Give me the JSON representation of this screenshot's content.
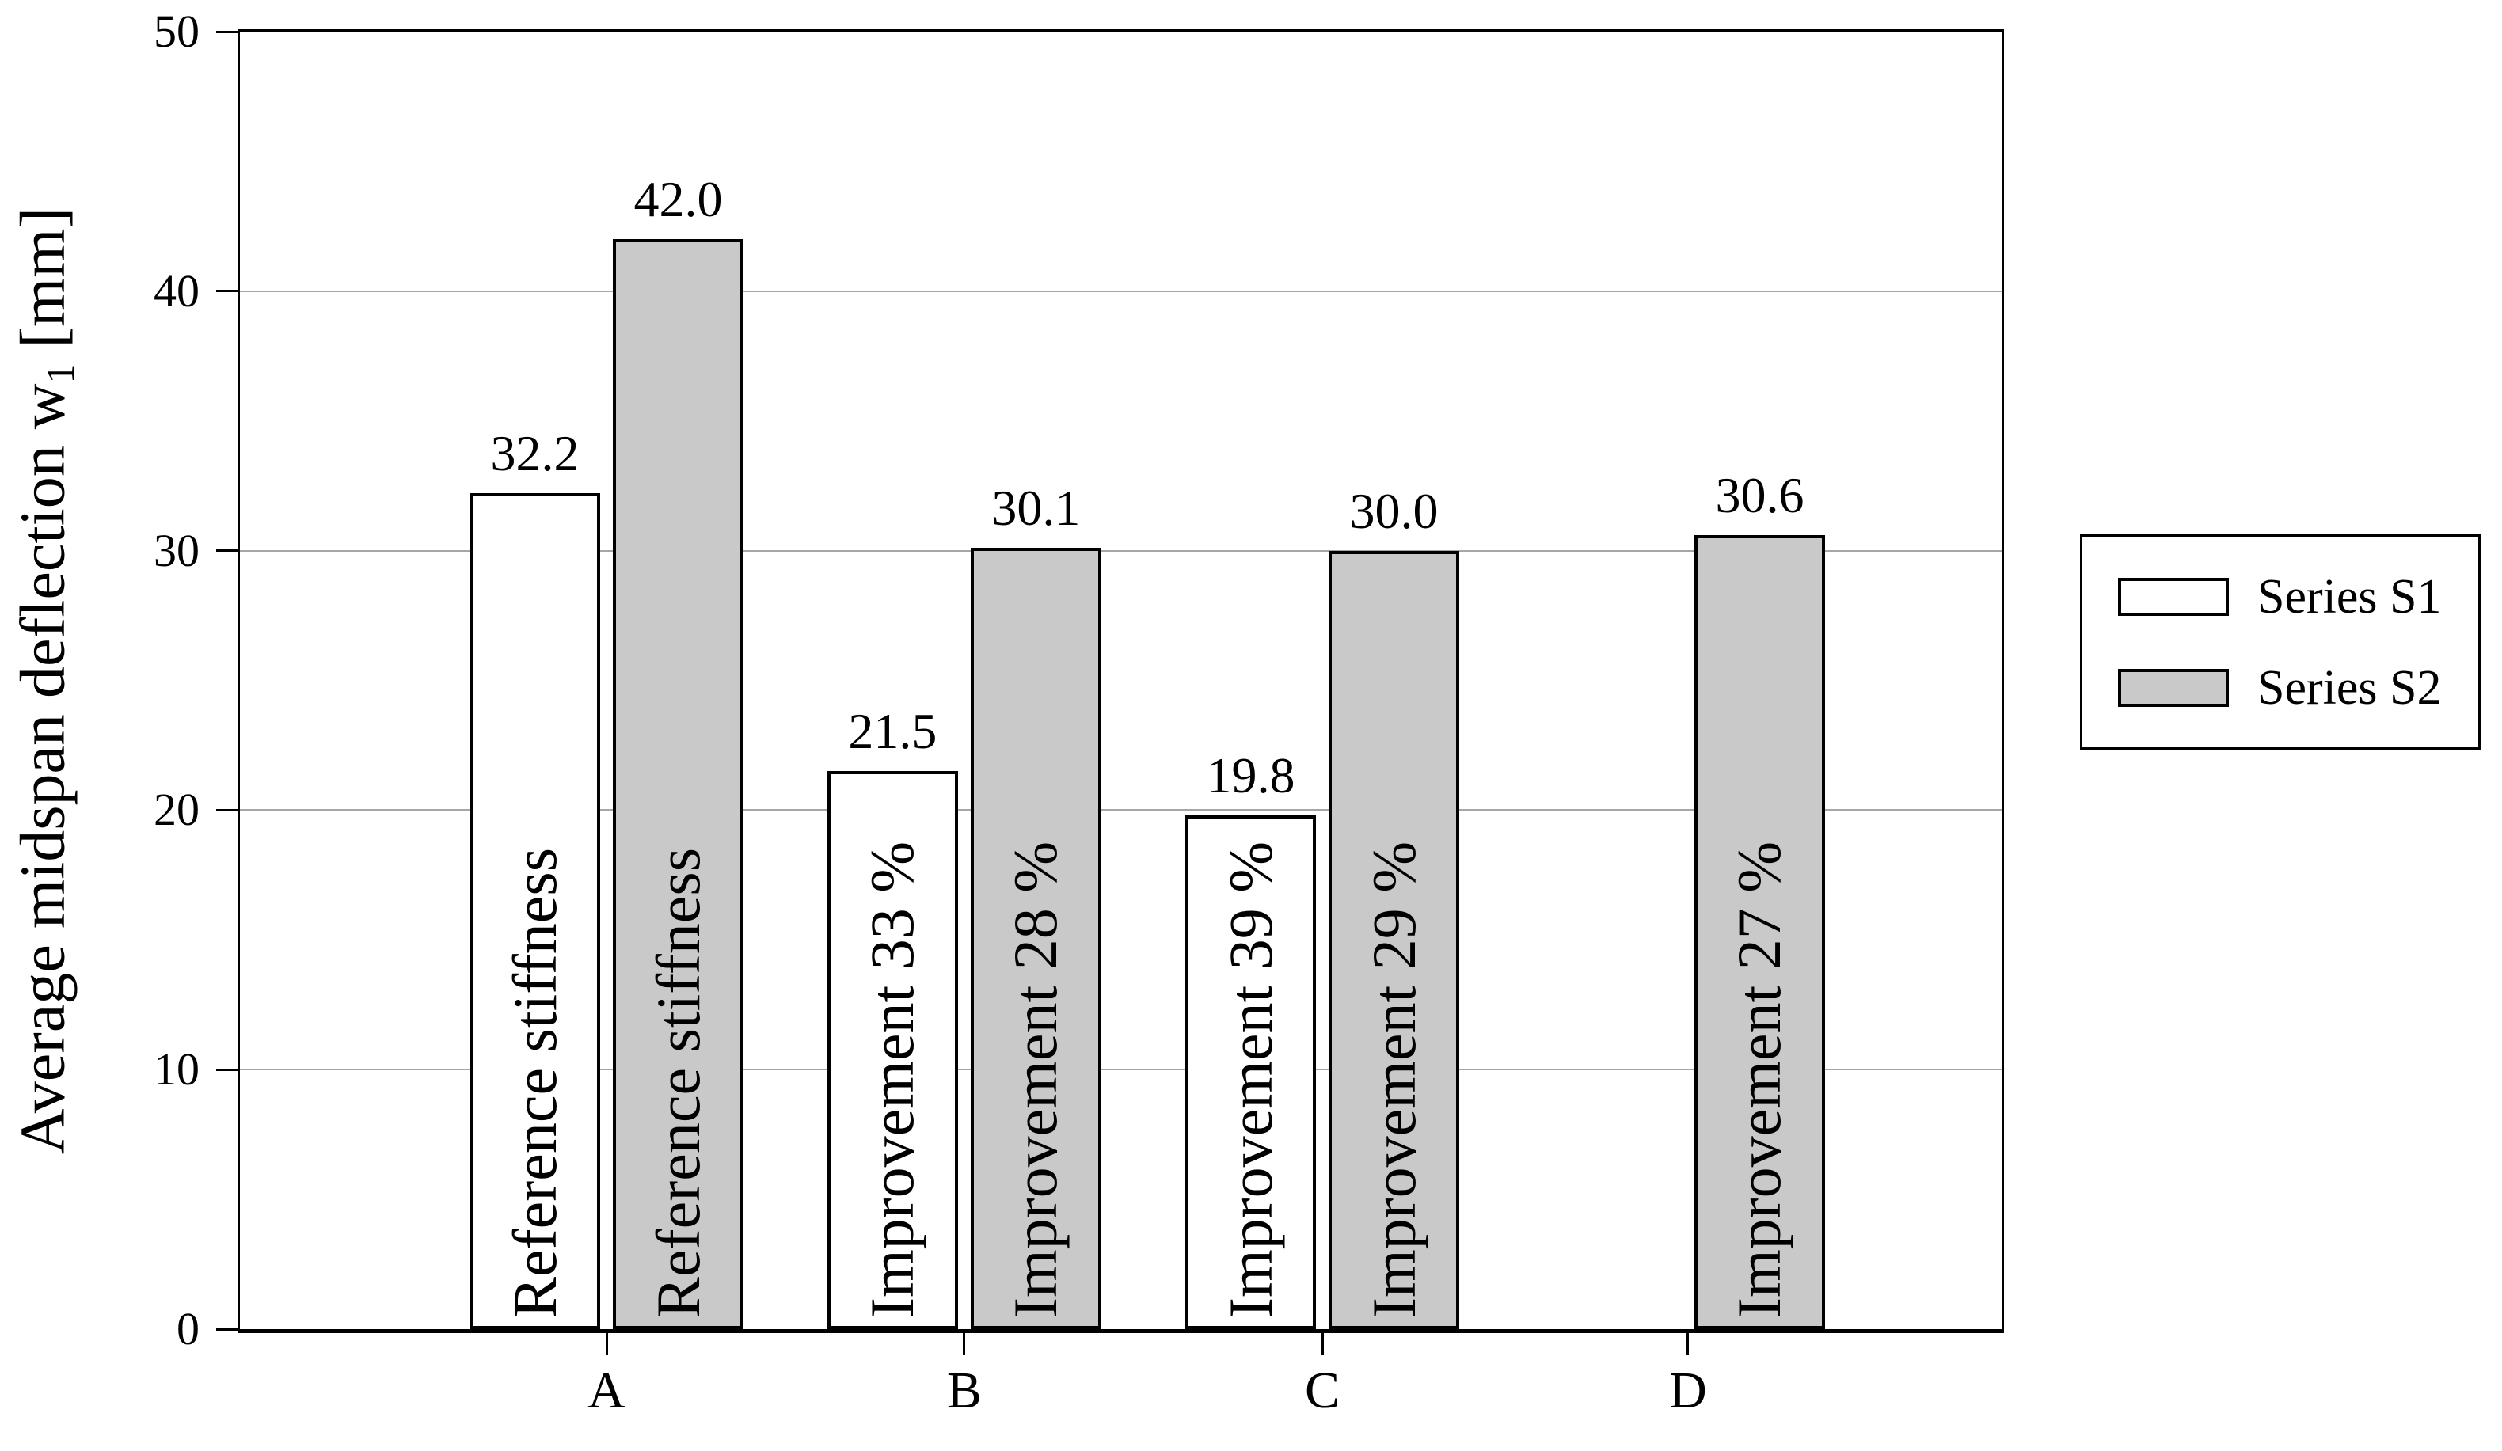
{
  "chart_data": {
    "type": "bar",
    "title": "",
    "categories": [
      "A",
      "B",
      "C",
      "D"
    ],
    "series": [
      {
        "name": "Series S1",
        "fill": "#ffffff",
        "values": [
          32.2,
          21.5,
          19.8,
          null
        ],
        "value_labels": [
          "32.2",
          "21.5",
          "19.8",
          null
        ],
        "bar_labels": [
          "Reference stiffness",
          "Improvement 33 %",
          "Improvement 39 %",
          null
        ]
      },
      {
        "name": "Series S2",
        "fill": "#c9c9c9",
        "values": [
          42.0,
          30.1,
          30.0,
          30.6
        ],
        "value_labels": [
          "42.0",
          "30.1",
          "30.0",
          "30.6"
        ],
        "bar_labels": [
          "Reference stiffness",
          "Improvement 28 %",
          "Improvement 29 %",
          "Improvement 27 %"
        ]
      }
    ],
    "ylabel": "Average midspan deflection w1 [mm]",
    "ylabel_parts": {
      "main": "Average midspan deflection w",
      "sub": "1",
      "unit": " [mm]"
    },
    "xlabel": "",
    "ylim": [
      0,
      50
    ],
    "yticks": [
      "0",
      "10",
      "20",
      "30",
      "40",
      "50"
    ],
    "grid": "horizontal",
    "legend_position": "right",
    "colors": {
      "bar_border": "#000000",
      "axis": "#000000",
      "gridline": "#a6a6a6",
      "s1_fill": "#ffffff",
      "s2_fill": "#c9c9c9",
      "text": "#000000",
      "background": "#ffffff"
    }
  }
}
